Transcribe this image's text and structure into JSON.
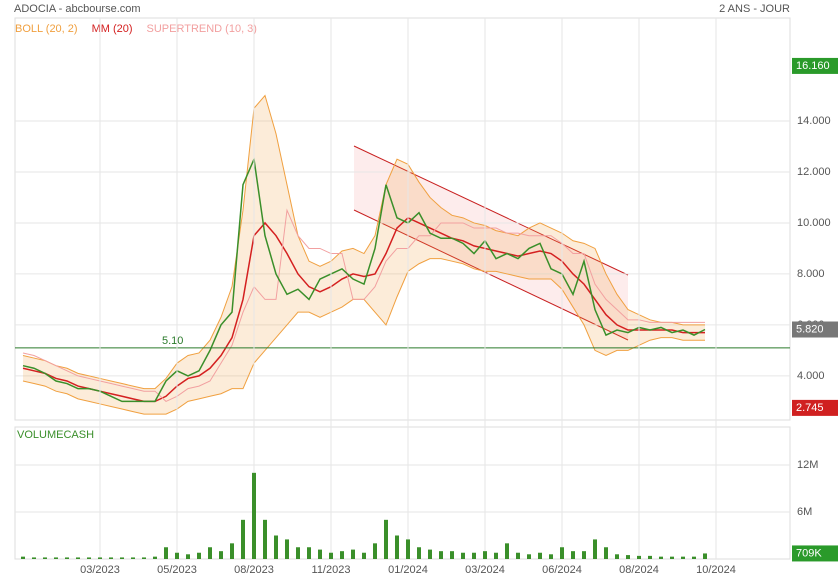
{
  "header": {
    "title": "ADOCIA - abcbourse.com",
    "period": "2 ANS - JOUR"
  },
  "chart_data": [
    {
      "type": "line",
      "color": "#3a8f2a",
      "values": [
        4.4,
        4.3,
        4.1,
        3.8,
        3.7,
        3.5,
        3.5,
        3.4,
        3.2,
        3.0,
        3.0,
        3.0,
        3.0,
        3.8,
        4.2,
        4.0,
        4.2,
        5.0,
        6.0,
        6.5,
        11.5,
        12.5,
        9.5,
        8.0,
        7.2,
        7.4,
        7.0,
        7.8,
        8.0,
        8.2,
        7.8,
        7.6,
        9.0,
        11.5,
        10.2,
        10.0,
        10.4,
        9.6,
        9.4,
        9.4,
        9.2,
        8.8,
        9.3,
        8.6,
        8.8,
        8.6,
        9.0,
        9.2,
        8.2,
        8.0,
        7.2,
        8.5,
        6.6,
        5.6,
        5.8,
        5.7,
        5.9,
        5.8,
        5.9,
        5.7,
        5.8,
        5.6,
        5.82,
        null
      ],
      "series": [
        {
          "name": "BOLL (20, 2)",
          "color": "#f0a040",
          "upper": [
            4.8,
            4.7,
            4.6,
            4.4,
            4.3,
            4.1,
            4.0,
            3.9,
            3.8,
            3.7,
            3.6,
            3.5,
            3.5,
            3.9,
            4.5,
            4.8,
            4.9,
            5.4,
            6.3,
            7.5,
            10.5,
            14.5,
            15.0,
            13.5,
            11.5,
            9.5,
            8.5,
            8.3,
            8.5,
            8.9,
            9.0,
            8.8,
            9.5,
            11.5,
            12.5,
            12.3,
            11.6,
            11.0,
            10.6,
            10.3,
            10.2,
            10.0,
            9.9,
            9.7,
            9.6,
            9.5,
            9.8,
            10.0,
            9.8,
            9.6,
            9.3,
            9.2,
            9.0,
            8.0,
            7.2,
            6.6,
            6.4,
            6.2,
            6.1,
            6.1,
            6.0,
            6.0,
            6.0,
            null
          ],
          "lower": [
            3.8,
            3.7,
            3.6,
            3.4,
            3.3,
            3.1,
            3.0,
            2.9,
            2.8,
            2.7,
            2.6,
            2.5,
            2.5,
            2.5,
            2.7,
            3.0,
            3.1,
            3.2,
            3.3,
            3.5,
            3.5,
            4.5,
            5.0,
            5.5,
            6.0,
            6.5,
            6.5,
            6.3,
            6.5,
            6.7,
            7.0,
            7.0,
            6.5,
            6.0,
            7.1,
            8.1,
            8.4,
            8.6,
            8.6,
            8.5,
            8.4,
            8.2,
            8.1,
            8.1,
            8.0,
            7.9,
            7.8,
            7.8,
            7.8,
            7.4,
            6.7,
            6.0,
            5.0,
            4.8,
            5.0,
            5.0,
            5.2,
            5.4,
            5.5,
            5.5,
            5.4,
            5.4,
            5.4,
            null
          ]
        },
        {
          "name": "MM (20)",
          "color": "#d42020",
          "values": [
            4.3,
            4.2,
            4.1,
            3.9,
            3.8,
            3.6,
            3.5,
            3.4,
            3.3,
            3.2,
            3.1,
            3.0,
            3.0,
            3.2,
            3.6,
            3.9,
            4.0,
            4.3,
            4.8,
            5.5,
            7.0,
            9.5,
            10.0,
            9.5,
            8.8,
            8.0,
            7.5,
            7.3,
            7.5,
            7.8,
            8.0,
            7.9,
            8.0,
            8.8,
            9.8,
            10.2,
            10.0,
            9.8,
            9.6,
            9.4,
            9.3,
            9.1,
            9.0,
            8.9,
            8.8,
            8.7,
            8.8,
            8.9,
            8.8,
            8.5,
            8.0,
            7.6,
            7.0,
            6.4,
            6.0,
            5.8,
            5.8,
            5.8,
            5.8,
            5.8,
            5.7,
            5.7,
            5.7,
            null
          ]
        },
        {
          "name": "SUPERTREND (10, 3)",
          "color": "#f2a0a0",
          "values": [
            4.9,
            4.8,
            4.6,
            4.4,
            4.2,
            4.0,
            3.9,
            3.8,
            3.7,
            3.6,
            3.5,
            3.4,
            3.4,
            3.0,
            3.2,
            3.5,
            3.6,
            3.8,
            4.5,
            5.2,
            6.5,
            7.5,
            7.0,
            7.0,
            10.5,
            9.5,
            9.0,
            9.0,
            8.8,
            8.8,
            7.0,
            7.0,
            7.5,
            8.5,
            9.0,
            9.0,
            9.5,
            9.5,
            10.0,
            10.0,
            10.0,
            9.8,
            9.8,
            9.8,
            9.6,
            9.6,
            9.5,
            9.5,
            9.5,
            9.2,
            8.8,
            8.8,
            7.6,
            7.0,
            6.6,
            6.2,
            6.2,
            6.1,
            6.1,
            6.1,
            6.1,
            6.1,
            6.1,
            null
          ]
        }
      ],
      "ylim": [
        2.27,
        18.04
      ],
      "yticks": [
        {
          "value": 4,
          "label": "4.000"
        },
        {
          "value": 6,
          "label": "6.000"
        },
        {
          "value": 8,
          "label": "8.000"
        },
        {
          "value": 10,
          "label": "10.000"
        },
        {
          "value": 12,
          "label": "12.000"
        },
        {
          "value": 14,
          "label": "14.000"
        }
      ],
      "hline": {
        "value": 5.1,
        "label": "5.10"
      },
      "max": {
        "value": 16.16,
        "label": "16.160"
      },
      "last": {
        "value": 5.82,
        "label": "5.820"
      },
      "min": {
        "value": 2.745,
        "label": "2.745"
      },
      "grid": true
    },
    {
      "type": "bar",
      "title": "VOLUMECASH",
      "color": "#3a8f2a",
      "categories": [
        null,
        null,
        null,
        null,
        null,
        null,
        null,
        "03/2023",
        null,
        null,
        null,
        null,
        null,
        null,
        "05/2023",
        null,
        null,
        null,
        null,
        null,
        null,
        "08/2023",
        null,
        null,
        null,
        null,
        null,
        null,
        "11/2023",
        null,
        null,
        null,
        null,
        null,
        null,
        "01/2024",
        null,
        null,
        null,
        null,
        null,
        null,
        "03/2024",
        null,
        null,
        null,
        null,
        null,
        null,
        "06/2024",
        null,
        null,
        null,
        null,
        null,
        null,
        "08/2024",
        null,
        null,
        null,
        null,
        null,
        null,
        "10/2024"
      ],
      "values": [
        300000,
        200000,
        200000,
        200000,
        200000,
        200000,
        200000,
        200000,
        200000,
        200000,
        200000,
        200000,
        300000,
        1500000,
        800000,
        600000,
        800000,
        1500000,
        1000000,
        2000000,
        5000000,
        11000000,
        5000000,
        3000000,
        2500000,
        1500000,
        1500000,
        1200000,
        800000,
        1000000,
        1200000,
        800000,
        2000000,
        5000000,
        3000000,
        2500000,
        1500000,
        1200000,
        1000000,
        1000000,
        800000,
        800000,
        1000000,
        800000,
        2000000,
        800000,
        600000,
        800000,
        600000,
        1500000,
        1000000,
        1000000,
        2500000,
        1500000,
        600000,
        500000,
        400000,
        400000,
        300000,
        300000,
        300000,
        300000,
        709000,
        null
      ],
      "last": {
        "value": 709000,
        "label": "709K"
      },
      "ylim": [
        0,
        16850000
      ],
      "yticks": [
        {
          "value": 6000000,
          "label": "6M"
        },
        {
          "value": 12000000,
          "label": "12M"
        }
      ],
      "grid": true
    }
  ]
}
